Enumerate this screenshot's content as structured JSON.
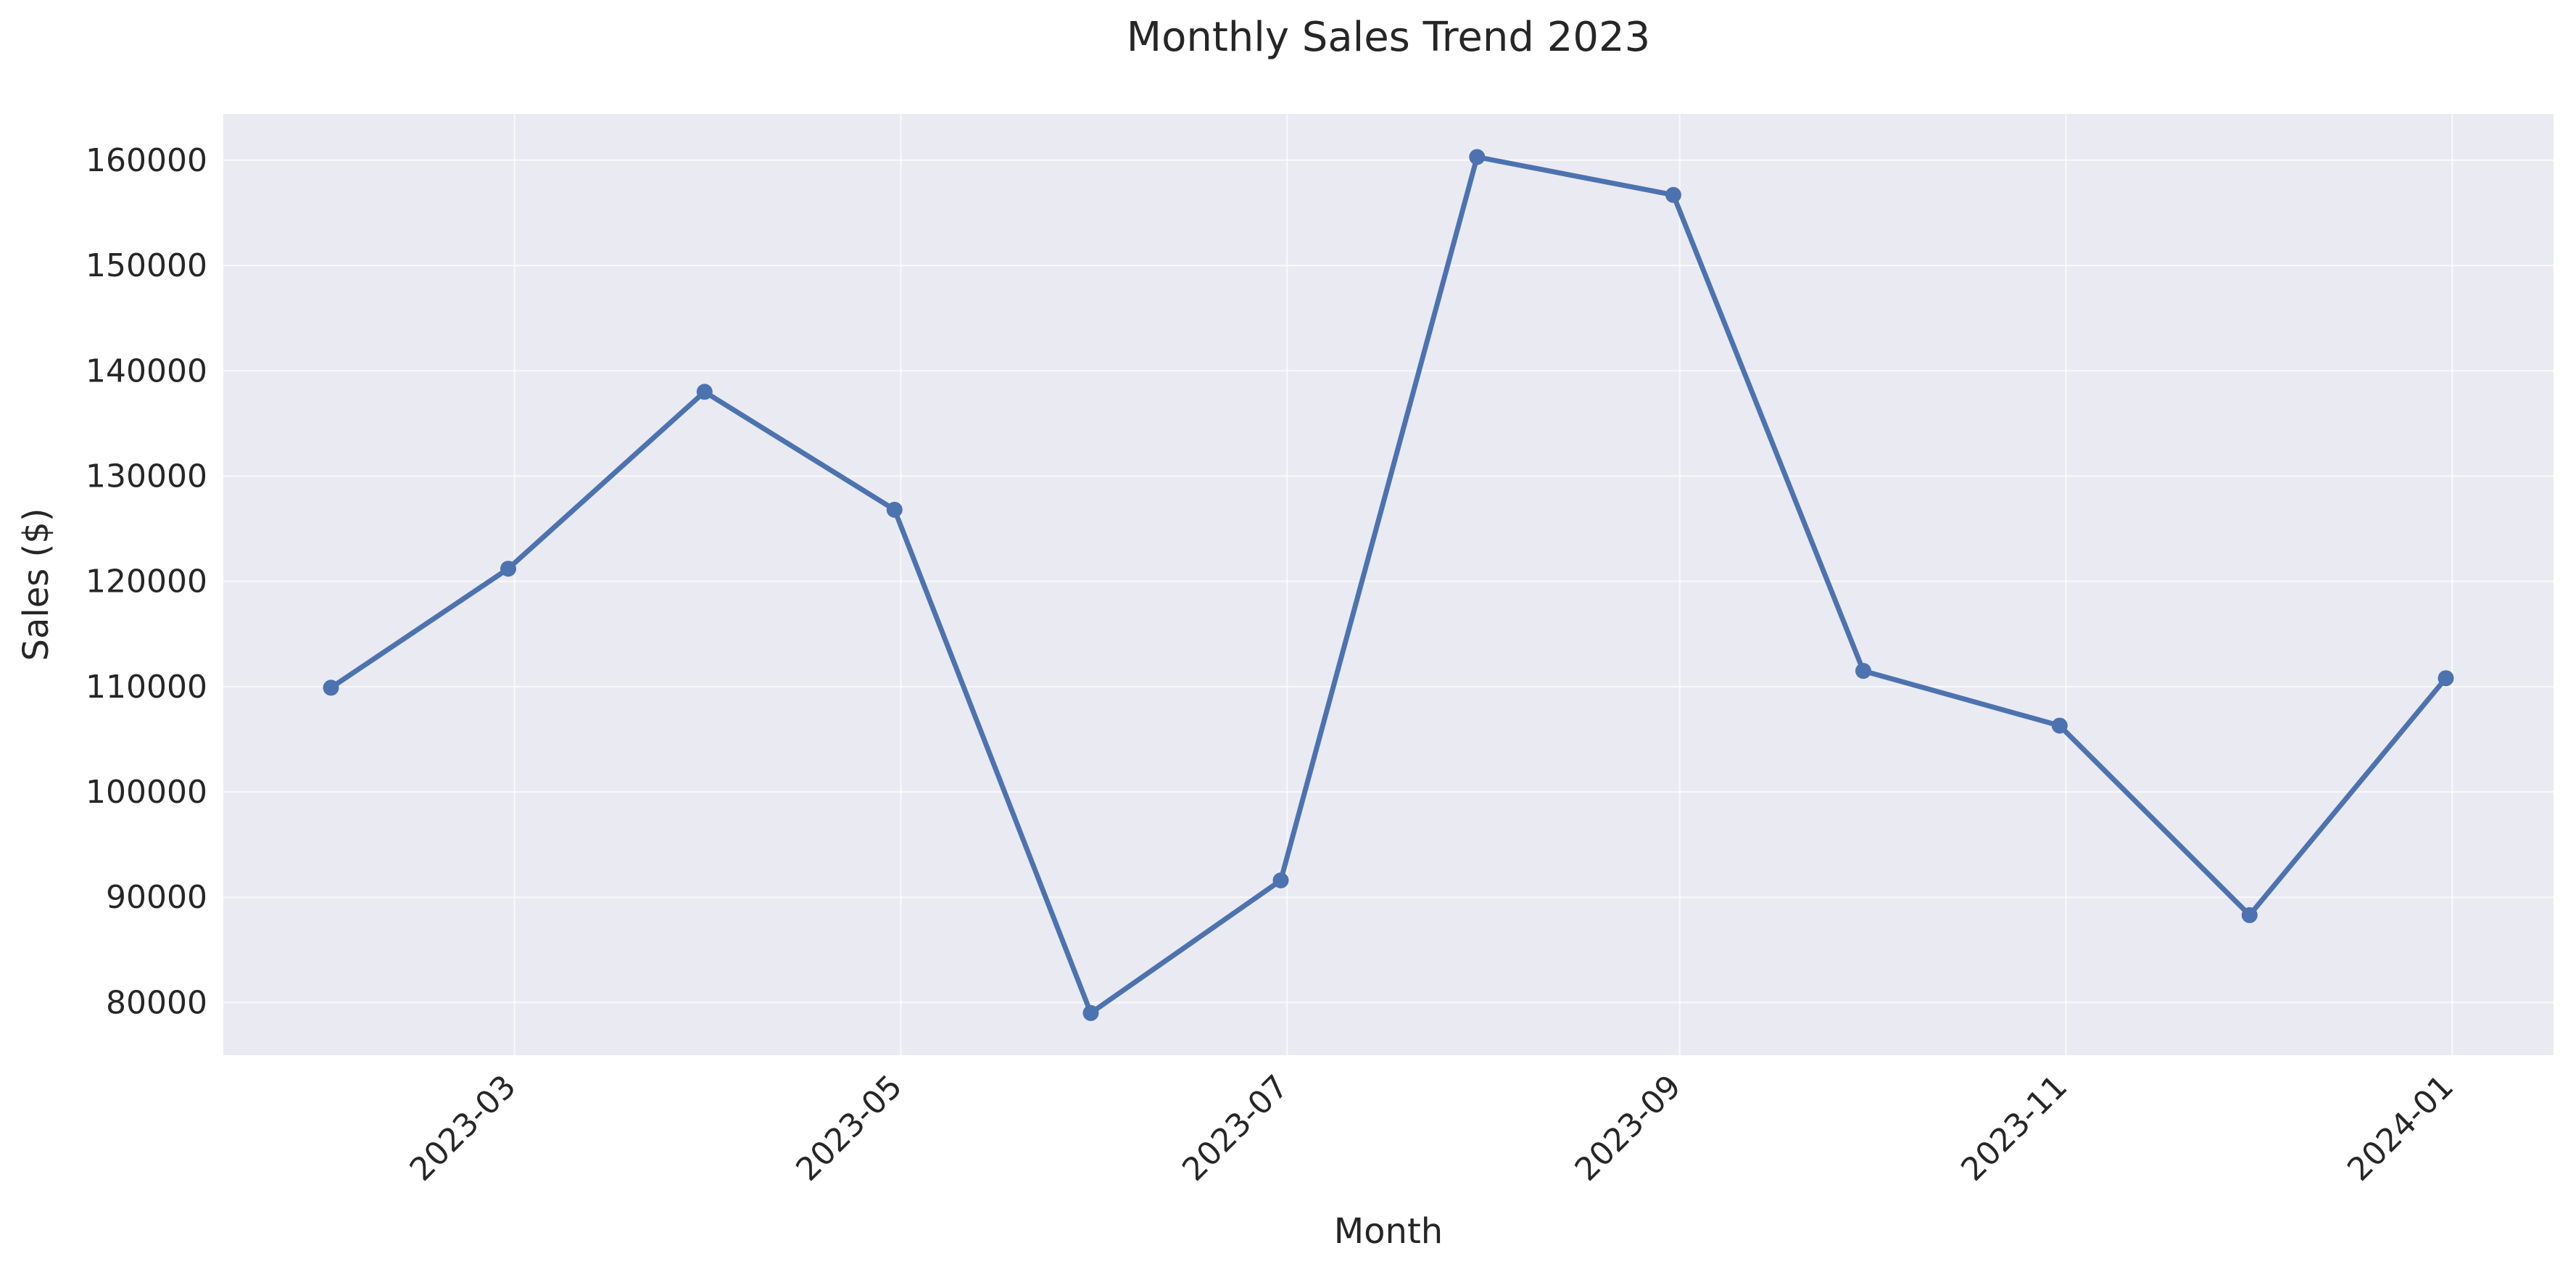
{
  "chart_data": {
    "type": "line",
    "title": "Monthly Sales Trend 2023",
    "xlabel": "Month",
    "ylabel": "Sales ($)",
    "x": [
      "2023-01-31",
      "2023-02-28",
      "2023-03-31",
      "2023-04-30",
      "2023-05-31",
      "2023-06-30",
      "2023-07-31",
      "2023-08-31",
      "2023-09-30",
      "2023-10-31",
      "2023-11-30",
      "2023-12-31"
    ],
    "series": [
      {
        "values": [
          109900,
          121200,
          138000,
          126800,
          79000,
          91600,
          160300,
          156700,
          111500,
          106300,
          88300,
          110800
        ],
        "color": "#4c72b0",
        "marker": "circle"
      }
    ],
    "x_ticks": [
      "2023-03",
      "2023-05",
      "2023-07",
      "2023-09",
      "2023-11",
      "2024-01"
    ],
    "y_ticks": [
      80000,
      90000,
      100000,
      110000,
      120000,
      130000,
      140000,
      150000,
      160000
    ],
    "ylim": [
      75000,
      164400
    ],
    "xlim": [
      "2023-01-14",
      "2024-01-17"
    ],
    "grid": true,
    "plot_background": "#eaeaf2",
    "grid_color": "#ffffff"
  }
}
